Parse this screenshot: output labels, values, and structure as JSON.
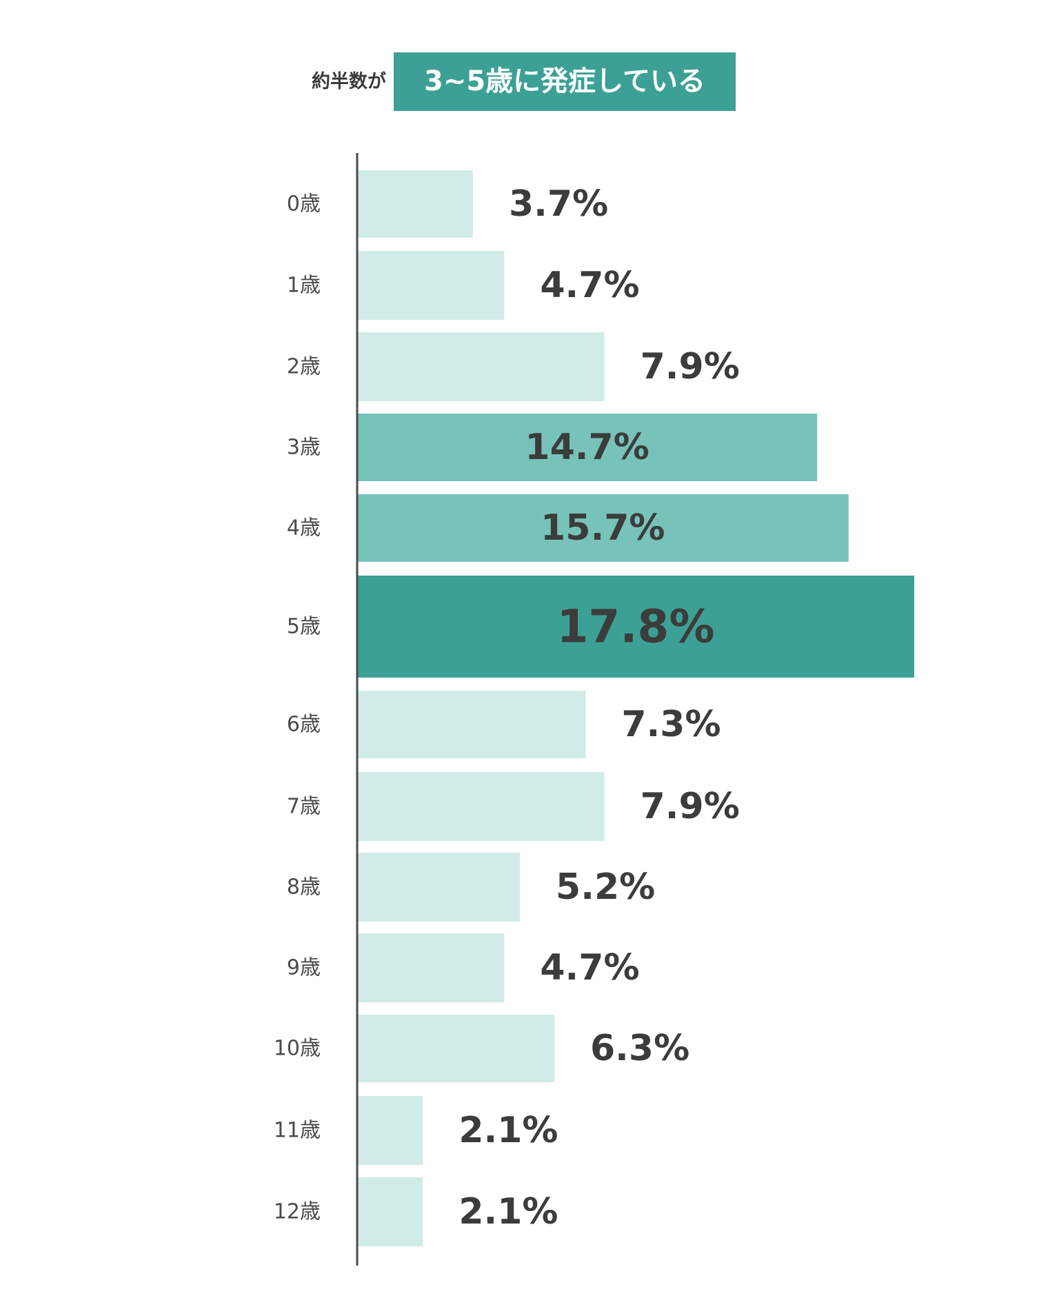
{
  "header": {
    "prefix": "約半数が",
    "badge": "3~5歳に発症している"
  },
  "colors": {
    "light": "#d1ebe6",
    "medium": "#77c3ba",
    "dark": "#3da095",
    "axis": "#4a4a4a",
    "value_text": "#3c3c3c",
    "highlight_text": "#ffffff"
  },
  "chart_data": {
    "type": "bar",
    "orientation": "horizontal",
    "categories": [
      "0歳",
      "1歳",
      "2歳",
      "3歳",
      "4歳",
      "5歳",
      "6歳",
      "7歳",
      "8歳",
      "9歳",
      "10歳",
      "11歳",
      "12歳"
    ],
    "values": [
      3.7,
      4.7,
      7.9,
      14.7,
      15.7,
      17.8,
      7.3,
      7.9,
      5.2,
      4.7,
      6.3,
      2.1,
      2.1
    ],
    "value_labels": [
      "3.7%",
      "4.7%",
      "7.9%",
      "14.7%",
      "15.7%",
      "17.8%",
      "7.3%",
      "7.9%",
      "5.2%",
      "4.7%",
      "6.3%",
      "2.1%",
      "2.1%"
    ],
    "highlight": [
      "none",
      "none",
      "none",
      "medium",
      "medium",
      "dark",
      "none",
      "none",
      "none",
      "none",
      "none",
      "none",
      "none"
    ],
    "title": "",
    "xlabel": "",
    "ylabel": "",
    "xlim": [
      0,
      17.8
    ],
    "grid": false,
    "legend": "none"
  }
}
